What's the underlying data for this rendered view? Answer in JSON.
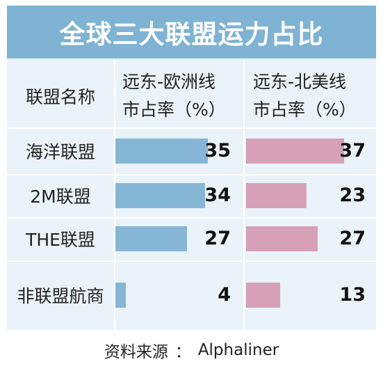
{
  "title": "全球三大联盟运力占比",
  "header": {
    "name_col": "联盟名称",
    "col1_line1": "远东-欧洲线",
    "col1_line2": "市占率（%）",
    "col2_line1": "远东-北美线",
    "col2_line2": "市占率（%）"
  },
  "chart_data": {
    "type": "bar",
    "categories": [
      "海洋联盟",
      "2M联盟",
      "THE联盟",
      "非联盟航商"
    ],
    "series": [
      {
        "name": "远东-欧洲线市占率（%）",
        "values": [
          35,
          34,
          27,
          4
        ],
        "color": "#85b6d6"
      },
      {
        "name": "远东-北美线市占率（%）",
        "values": [
          37,
          23,
          27,
          13
        ],
        "color": "#d6a0b6"
      }
    ],
    "xlim": [
      0,
      40
    ]
  },
  "source": {
    "label": "资料来源",
    "sep": "：",
    "value": "Alphaliner"
  }
}
